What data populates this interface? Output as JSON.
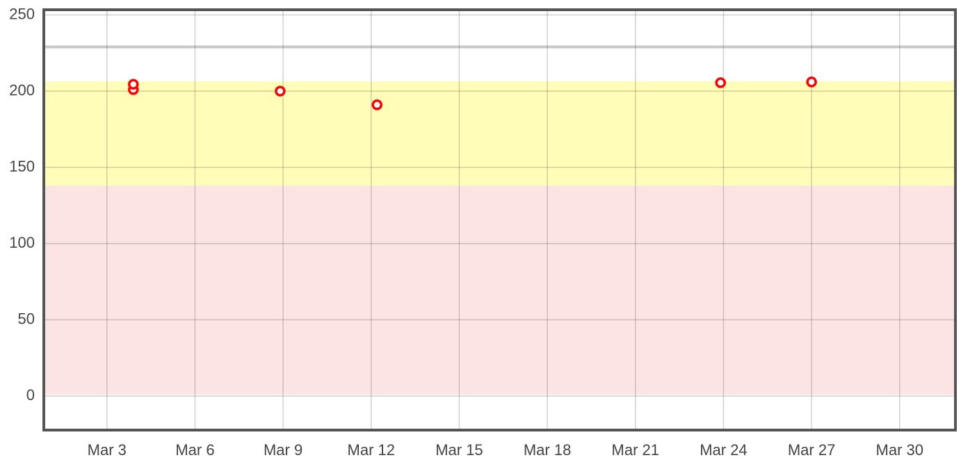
{
  "chart_data": {
    "type": "scatter",
    "x": [
      3.9,
      3.9,
      8.9,
      12.2,
      23.9,
      27.0
    ],
    "series": [
      {
        "color": "#ff0000",
        "values": [
          201,
          204.5,
          200,
          191,
          205.5,
          206
        ]
      }
    ],
    "xlim": [
      0.85,
      31.9
    ],
    "xticks": [
      {
        "value": 3,
        "label": "Mar 3"
      },
      {
        "value": 6,
        "label": "Mar 6"
      },
      {
        "value": 9,
        "label": "Mar 9"
      },
      {
        "value": 12,
        "label": "Mar 12"
      },
      {
        "value": 15,
        "label": "Mar 15"
      },
      {
        "value": 18,
        "label": "Mar 18"
      },
      {
        "value": 21,
        "label": "Mar 21"
      },
      {
        "value": 24,
        "label": "Mar 24"
      },
      {
        "value": 27,
        "label": "Mar 27"
      },
      {
        "value": 30,
        "label": "Mar 30"
      }
    ],
    "ylim": [
      -22.4,
      253.4
    ],
    "yticks": [
      0,
      50,
      100,
      150,
      200,
      250
    ],
    "bands": [
      {
        "from": 1,
        "to": 138,
        "color": "#fde4e4"
      },
      {
        "from": 138,
        "to": 206.4,
        "color": "#fffdb8"
      }
    ],
    "reference_lines": [
      229
    ],
    "grid": true
  }
}
